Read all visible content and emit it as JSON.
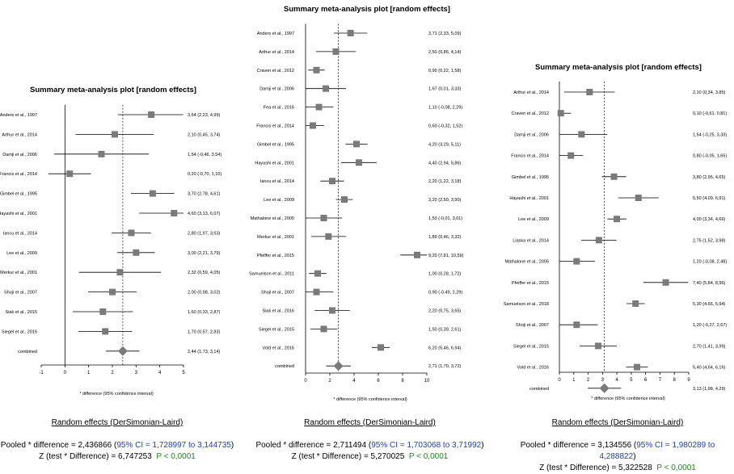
{
  "chart_data": [
    {
      "type": "forest",
      "title": "Summary meta-analysis plot [random effects]",
      "xlabel": "* difference (95% confidence interval)",
      "xlim": [
        -1,
        5
      ],
      "xticks": [
        "-1",
        "0",
        "1",
        "2",
        "3",
        "4",
        "5"
      ],
      "studies": [
        {
          "label": "Anders et al., 1997",
          "est": 3.64,
          "lo": 2.23,
          "hi": 4.99,
          "ci_text": "3,64 (2,23, 4,99)"
        },
        {
          "label": "Arthur et al., 2014",
          "est": 2.1,
          "lo": 0.45,
          "hi": 3.74,
          "ci_text": "2,10 (0,45, 3,74)"
        },
        {
          "label": "Damji et al., 2006",
          "est": 1.54,
          "lo": -0.46,
          "hi": 3.54,
          "ci_text": "1,54 (-0,46, 3,54)"
        },
        {
          "label": "Francis et al., 2014",
          "est": 0.2,
          "lo": -0.7,
          "hi": 1.1,
          "ci_text": "0,20 (-0,70, 1,10)"
        },
        {
          "label": "Gimbel et al., 1995",
          "est": 3.7,
          "lo": 2.78,
          "hi": 4.61,
          "ci_text": "3,70 (2,78, 4,61)"
        },
        {
          "label": "Hayashi et al., 2001",
          "est": 4.6,
          "lo": 3.13,
          "hi": 6.07,
          "ci_text": "4,60 (3,13, 6,07)"
        },
        {
          "label": "Iancu et al., 2014",
          "est": 2.8,
          "lo": 1.97,
          "hi": 3.63,
          "ci_text": "2,80 (1,97, 3,63)"
        },
        {
          "label": "Lee et al., 2009",
          "est": 3.0,
          "lo": 2.21,
          "hi": 3.79,
          "ci_text": "3,00 (2,21, 3,79)"
        },
        {
          "label": "Merkur et al., 2001",
          "est": 2.32,
          "lo": 0.59,
          "hi": 4.05,
          "ci_text": "2,32 (0,59, 4,05)"
        },
        {
          "label": "Shoji et al., 2007",
          "est": 2.0,
          "lo": 0.98,
          "hi": 3.02,
          "ci_text": "2,00 (0,98, 3,02)"
        },
        {
          "label": "Siak et al., 2015",
          "est": 1.6,
          "lo": 0.33,
          "hi": 2.87,
          "ci_text": "1,60 (0,33, 2,87)"
        },
        {
          "label": "Siegel et al., 2015",
          "est": 1.7,
          "lo": 0.57,
          "hi": 2.83,
          "ci_text": "1,70 (0,57, 2,83)"
        }
      ],
      "combined": {
        "label": "combined",
        "est": 2.44,
        "lo": 1.73,
        "hi": 3.14,
        "ci_text": "2,44 (1,73, 3,14)"
      },
      "method": "Random effects (DerSimonian-Laird)",
      "pooled_prefix": "Pooled * difference = 2,436866 (",
      "pooled_ci": "95% CI = 1,728997 to 3,144735",
      "pooled_suffix": ")",
      "z_prefix": "Z (test * Difference) = 6,747253",
      "p_text": "P < 0,0001"
    },
    {
      "type": "forest",
      "title": "Summary meta-analysis plot [random effects]",
      "xlabel": "* difference (95% confidence interval)",
      "xlim": [
        0,
        10
      ],
      "xticks": [
        "0",
        "2",
        "4",
        "6",
        "8",
        "10"
      ],
      "studies": [
        {
          "label": "Anders et al., 1997",
          "est": 3.71,
          "lo": 2.33,
          "hi": 5.09,
          "ci_text": "3,71 (2,33, 5,09)"
        },
        {
          "label": "Arthur et al., 2014",
          "est": 2.5,
          "lo": 0.86,
          "hi": 4.14,
          "ci_text": "2,50 (0,86, 4,14)"
        },
        {
          "label": "Craven et al., 2012",
          "est": 0.9,
          "lo": 0.22,
          "hi": 1.58,
          "ci_text": "0,90 (0,22, 1,58)"
        },
        {
          "label": "Damji et al., 2006",
          "est": 1.67,
          "lo": 0.01,
          "hi": 3.33,
          "ci_text": "1,67 (0,01, 3,33)"
        },
        {
          "label": "Fea et al., 2015",
          "est": 1.1,
          "lo": -0.08,
          "hi": 2.29,
          "ci_text": "1,10 (-0,08, 2,29)"
        },
        {
          "label": "Francis et al., 2014",
          "est": 0.6,
          "lo": -0.32,
          "hi": 1.52,
          "ci_text": "0,60 (-0,32, 1,52)"
        },
        {
          "label": "Gimbel et al., 1995",
          "est": 4.2,
          "lo": 3.29,
          "hi": 5.11,
          "ci_text": "4,20 (3,29, 5,11)"
        },
        {
          "label": "Hayashi et al., 2001",
          "est": 4.4,
          "lo": 2.94,
          "hi": 5.86,
          "ci_text": "4,40 (2,94, 5,86)"
        },
        {
          "label": "Iancu et al., 2014",
          "est": 2.2,
          "lo": 1.22,
          "hi": 3.18,
          "ci_text": "2,20 (1,22, 3,18)"
        },
        {
          "label": "Lee et al., 2009",
          "est": 3.2,
          "lo": 2.5,
          "hi": 3.9,
          "ci_text": "3,20 (2,50, 3,90)"
        },
        {
          "label": "Mathalone et al., 2005",
          "est": 1.5,
          "lo": -0.01,
          "hi": 3.01,
          "ci_text": "1,50 (-0,01, 3,01)"
        },
        {
          "label": "Merkur et al., 2001",
          "est": 1.89,
          "lo": 0.46,
          "hi": 3.32,
          "ci_text": "1,89 (0,46, 3,32)"
        },
        {
          "label": "Pfeiffer et al., 2015",
          "est": 9.2,
          "lo": 7.81,
          "hi": 10.59,
          "ci_text": "9,20 (7,81, 10,59)"
        },
        {
          "label": "Samuelson et al., 2011",
          "est": 1.0,
          "lo": 0.28,
          "hi": 1.72,
          "ci_text": "1,00 (0,28, 1,72)"
        },
        {
          "label": "Shoji et al., 2007",
          "est": 0.9,
          "lo": -0.49,
          "hi": 2.29,
          "ci_text": "0,90 (-0,49, 2,29)"
        },
        {
          "label": "Siak et al., 2016",
          "est": 2.2,
          "lo": 0.75,
          "hi": 3.65,
          "ci_text": "2,20 (0,75, 3,65)"
        },
        {
          "label": "Siegel et al., 2015",
          "est": 1.5,
          "lo": 0.39,
          "hi": 2.61,
          "ci_text": "1,50 (0,39, 2,61)"
        },
        {
          "label": "Vold et al., 2016",
          "est": 6.2,
          "lo": 5.46,
          "hi": 6.94,
          "ci_text": "6,20 (5,46, 6,94)"
        }
      ],
      "combined": {
        "label": "combined",
        "est": 2.71,
        "lo": 1.7,
        "hi": 3.72,
        "ci_text": "2,71 (1,70, 3,72)"
      },
      "method": "Random effects (DerSimonian-Laird)",
      "pooled_prefix": "Pooled * difference = 2,711494 (",
      "pooled_ci": "95% CI = 1,703068 to 3,71992",
      "pooled_suffix": ")",
      "z_prefix": "Z (test * Difference) = 5,270025",
      "p_text": "P < 0,0001"
    },
    {
      "type": "forest",
      "title": "Summary meta-analysis plot [random effects]",
      "xlabel": "* difference (95% confidence interval)",
      "xlim": [
        0,
        9
      ],
      "xticks": [
        "0",
        "1",
        "2",
        "3",
        "4",
        "5",
        "6",
        "7",
        "8",
        "9"
      ],
      "studies": [
        {
          "label": "Arthur et al., 2014",
          "est": 2.1,
          "lo": 0.34,
          "hi": 3.85,
          "ci_text": "2,10 (0,34, 3,85)"
        },
        {
          "label": "Craven et al., 2012",
          "est": 0.1,
          "lo": -0.61,
          "hi": 0.81,
          "ci_text": "0,10 (-0,61, 0,81)"
        },
        {
          "label": "Damji et al., 2006",
          "est": 1.54,
          "lo": -0.25,
          "hi": 3.33,
          "ci_text": "1,54 (-0,25, 3,33)"
        },
        {
          "label": "Francis et al., 2014",
          "est": 0.8,
          "lo": -0.05,
          "hi": 1.65,
          "ci_text": "0,80 (-0,05, 1,65)"
        },
        {
          "label": "Gimbel et al., 1995",
          "est": 3.8,
          "lo": 2.95,
          "hi": 4.65,
          "ci_text": "3,80 (2,95, 4,65)"
        },
        {
          "label": "Hayashi et al., 2001",
          "est": 5.5,
          "lo": 4.09,
          "hi": 6.91,
          "ci_text": "5,50 (4,09, 6,91)"
        },
        {
          "label": "Lee et al., 2009",
          "est": 4.0,
          "lo": 3.34,
          "hi": 4.66,
          "ci_text": "4,00 (3,34, 4,66)"
        },
        {
          "label": "Liaska et al., 2014",
          "est": 2.75,
          "lo": 1.52,
          "hi": 3.98,
          "ci_text": "2,75 (1,52, 3,98)"
        },
        {
          "label": "Mathalone et al., 2005",
          "est": 1.2,
          "lo": -0.08,
          "hi": 2.48,
          "ci_text": "1,20 (-0,08, 2,48)"
        },
        {
          "label": "Pfeiffer et al., 2015",
          "est": 7.4,
          "lo": 5.84,
          "hi": 8.96,
          "ci_text": "7,40 (5,84, 8,96)"
        },
        {
          "label": "Samuelson et al., 2018",
          "est": 5.3,
          "lo": 4.66,
          "hi": 5.94,
          "ci_text": "5,30 (4,66, 5,94)"
        },
        {
          "label": "Shoji et al., 2007",
          "est": 1.2,
          "lo": -0.27,
          "hi": 2.67,
          "ci_text": "1,20 (-0,27, 2,67)"
        },
        {
          "label": "Siegel et al., 2015",
          "est": 2.7,
          "lo": 1.41,
          "hi": 3.99,
          "ci_text": "2,70 (1,41, 3,99)"
        },
        {
          "label": "Vold et al., 2016",
          "est": 5.4,
          "lo": 4.64,
          "hi": 6.16,
          "ci_text": "5,40 (4,64, 6,16)"
        }
      ],
      "combined": {
        "label": "combined",
        "est": 3.13,
        "lo": 1.98,
        "hi": 4.29,
        "ci_text": "3,13 (1,98, 4,29)"
      },
      "method": "Random effects (DerSimonian-Laird)",
      "pooled_prefix": "Pooled * difference = 3,134556 (",
      "pooled_ci": "95% CI = 1,980289 to 4,288822",
      "pooled_suffix": ")",
      "z_prefix": "Z (test * Difference) = 5,322528",
      "p_text": "P < 0,0001"
    }
  ]
}
